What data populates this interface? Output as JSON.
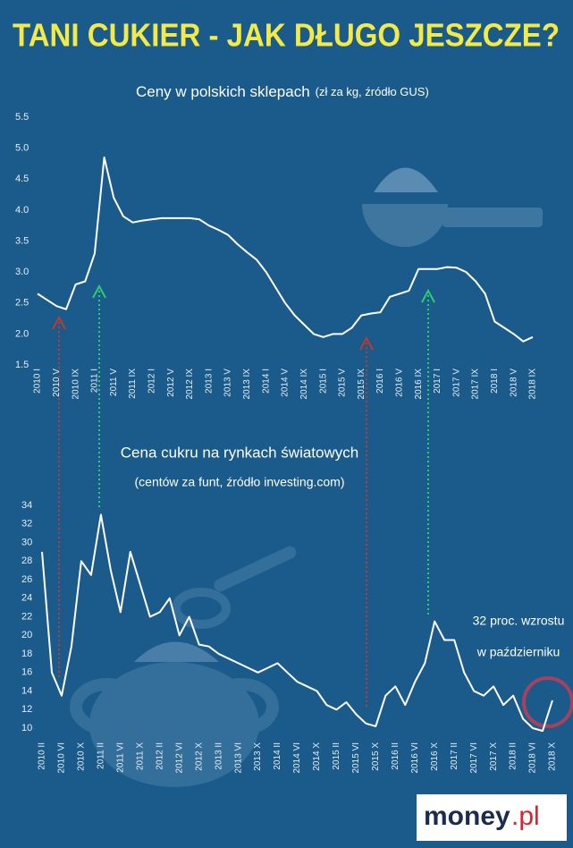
{
  "title": "TANI CUKIER - JAK DŁUGO JESZCZE?",
  "chart_data": [
    {
      "type": "line",
      "title": "Ceny w polskich sklepach",
      "subtitle": "(zł za kg, źródło GUS)",
      "categories": [
        "2010 I",
        null,
        "2010 V",
        null,
        "2010 IX",
        null,
        "2011 I",
        null,
        "2011 V",
        null,
        "2011 IX",
        null,
        "2012 I",
        null,
        "2012 V",
        null,
        "2012 IX",
        null,
        "2013 I",
        null,
        "2013 V",
        null,
        "2013 IX",
        null,
        "2014 I",
        null,
        "2014 V",
        null,
        "2014 IX",
        null,
        "2015 I",
        null,
        "2015 V",
        null,
        "2015 IX",
        null,
        "2016 I",
        null,
        "2016 V",
        null,
        "2016 IX",
        null,
        "2017 I",
        null,
        "2017 V",
        null,
        "2017 IX",
        null,
        "2018 I",
        null,
        "2018 V",
        null,
        "2018 IX"
      ],
      "series": [
        {
          "name": null,
          "color": "#ffffff",
          "values": [
            2.65,
            2.55,
            2.45,
            2.4,
            2.8,
            2.85,
            3.3,
            4.85,
            4.2,
            3.9,
            3.8,
            3.83,
            3.85,
            3.87,
            3.87,
            3.87,
            3.87,
            3.85,
            3.75,
            3.68,
            3.6,
            3.45,
            3.32,
            3.2,
            3.0,
            2.75,
            2.5,
            2.3,
            2.15,
            2.0,
            1.95,
            2.0,
            2.0,
            2.1,
            2.3,
            2.33,
            2.35,
            2.6,
            2.65,
            2.7,
            3.05,
            3.05,
            3.05,
            3.08,
            3.07,
            3.0,
            2.85,
            2.65,
            2.2,
            2.1,
            2.0,
            1.88,
            1.95
          ]
        }
      ],
      "ylim": [
        1.5,
        5.5
      ],
      "yticks": [
        1.5,
        {
          "value": 2,
          "label": "2.0"
        },
        2.5,
        {
          "value": 3,
          "label": "3.0"
        },
        3.5,
        {
          "value": 4,
          "label": "4.0"
        },
        4.5,
        {
          "value": 5,
          "label": "5.0"
        },
        5.5
      ],
      "grid": false
    },
    {
      "type": "line",
      "title": "Cena cukru na rynkach światowych",
      "subtitle": "(centów za funt, źródło investing.com)",
      "categories": [
        "2010 II",
        null,
        "2010 VI",
        null,
        "2010 X",
        null,
        "2011 II",
        null,
        "2011 VI",
        null,
        "2011 X",
        null,
        "2012 II",
        null,
        "2012 VI",
        null,
        "2012 X",
        null,
        "2013 II",
        null,
        "2013 VI",
        null,
        "2013 X",
        null,
        "2014 II",
        null,
        "2014 VI",
        null,
        "2014 X",
        null,
        "2015 II",
        null,
        "2015 VI",
        null,
        "2015 X",
        null,
        "2016 II",
        null,
        "2016 VI",
        null,
        "2016 X",
        null,
        "2017 II",
        null,
        "2017 VI",
        null,
        "2017 X",
        null,
        "2018 II",
        null,
        "2018 VI",
        null,
        "2018 X"
      ],
      "series": [
        {
          "name": null,
          "color": "#ffffff",
          "values": [
            29,
            16,
            13.5,
            18.8,
            28,
            26.5,
            33,
            27,
            22.5,
            29,
            25.5,
            22,
            22.5,
            24,
            20,
            22,
            19,
            18.8,
            18,
            17.5,
            17,
            16.5,
            16,
            16.5,
            17,
            16,
            15,
            14.5,
            14,
            12.5,
            12,
            12.8,
            11.5,
            10.5,
            10.2,
            13.5,
            14.5,
            12.5,
            15,
            17,
            21.5,
            19.5,
            19.5,
            16,
            14,
            13.5,
            14.5,
            12.5,
            13.5,
            11,
            10,
            9.7,
            13
          ]
        }
      ],
      "ylim": [
        9,
        34
      ],
      "yticks": [
        10,
        12,
        14,
        16,
        18,
        20,
        22,
        24,
        26,
        28,
        30,
        32,
        34
      ],
      "grid": false,
      "annotations": [
        "32 proc. wzrostu",
        "w październiku"
      ]
    }
  ],
  "logo": {
    "name": "money",
    "suffix": ".pl"
  }
}
